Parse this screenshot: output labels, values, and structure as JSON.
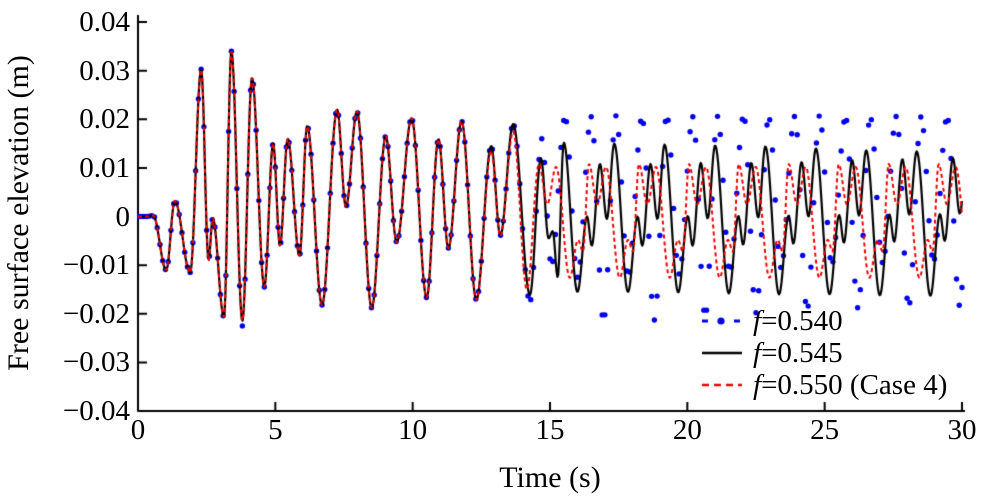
{
  "figure": {
    "xlabel": "Time (s)",
    "ylabel": "Free surface elevation (m)"
  },
  "chart_data": {
    "type": "line",
    "title": "",
    "xlabel": "Time (s)",
    "ylabel": "Free surface elevation (m)",
    "xlim": [
      0,
      30
    ],
    "ylim": [
      -0.04,
      0.04
    ],
    "grid": false,
    "legend_position": "lower right",
    "x_ticks": [
      0,
      5,
      10,
      15,
      20,
      25,
      30
    ],
    "x_tick_labels": [
      "0",
      "5",
      "10",
      "15",
      "20",
      "25",
      "30"
    ],
    "y_ticks": [
      0.04,
      0.03,
      0.02,
      0.01,
      0,
      -0.01,
      -0.02,
      -0.03,
      -0.04
    ],
    "y_tick_labels": [
      "0.04",
      "0.03",
      "0.02",
      "0.01",
      "0",
      "−0.01",
      "−0.02",
      "−0.03",
      "−0.04"
    ],
    "series": [
      {
        "name": "f=0.540",
        "label_prefix": "f",
        "label_rest": "=0.540",
        "color": "#0000ee",
        "style": "dotted-markers",
        "marker_dt": 0.1,
        "points": [
          [
            0,
            0
          ],
          [
            0.3,
            0
          ],
          [
            0.55,
            0.0002
          ],
          [
            1.03,
            -0.011
          ],
          [
            1.34,
            0.0032
          ],
          [
            1.9,
            -0.0115
          ],
          [
            2.3,
            0.0303
          ],
          [
            2.57,
            -0.009
          ],
          [
            2.72,
            -0.0003
          ],
          [
            3.13,
            -0.0207
          ],
          [
            3.4,
            0.034
          ],
          [
            3.8,
            -0.0225
          ],
          [
            4.15,
            0.0285
          ],
          [
            4.6,
            -0.0145
          ],
          [
            4.92,
            0.015
          ],
          [
            5.17,
            -0.006
          ],
          [
            5.45,
            0.016
          ],
          [
            5.88,
            -0.008
          ],
          [
            6.16,
            0.0186
          ],
          [
            6.7,
            -0.0182
          ],
          [
            7.25,
            0.022
          ],
          [
            7.57,
            0.002
          ],
          [
            7.97,
            0.0216
          ],
          [
            8.51,
            -0.0188
          ],
          [
            9.02,
            0.0165
          ],
          [
            9.42,
            -0.0053
          ],
          [
            9.96,
            0.0202
          ],
          [
            10.51,
            -0.0167
          ],
          [
            10.94,
            0.0159
          ],
          [
            11.3,
            -0.0065
          ],
          [
            11.78,
            0.0196
          ],
          [
            12.32,
            -0.0171
          ],
          [
            12.86,
            0.0145
          ],
          [
            13.19,
            -0.0039
          ],
          [
            13.66,
            0.019
          ],
          [
            14.27,
            -0.0175
          ],
          [
            14.7,
            0.016
          ],
          [
            15.05,
            -0.01
          ],
          [
            15.55,
            0.0205
          ],
          [
            16,
            -0.0125
          ],
          [
            16.5,
            0.0205
          ],
          [
            16.95,
            -0.0215
          ],
          [
            17.4,
            0.0207
          ],
          [
            17.85,
            -0.0122
          ],
          [
            18.35,
            0.0204
          ],
          [
            18.8,
            -0.0213
          ],
          [
            19.25,
            0.0208
          ],
          [
            19.7,
            -0.0118
          ],
          [
            20.2,
            0.0205
          ],
          [
            20.65,
            -0.0205
          ],
          [
            21.1,
            0.0206
          ],
          [
            21.55,
            -0.0112
          ],
          [
            22.05,
            0.0208
          ],
          [
            22.5,
            -0.0198
          ],
          [
            22.96,
            0.0205
          ],
          [
            23.41,
            -0.0105
          ],
          [
            23.91,
            0.0206
          ],
          [
            24.36,
            -0.0192
          ],
          [
            24.81,
            0.0207
          ],
          [
            25.26,
            -0.0098
          ],
          [
            25.76,
            0.0205
          ],
          [
            26.21,
            -0.0188
          ],
          [
            26.66,
            0.0205
          ],
          [
            27.11,
            -0.0095
          ],
          [
            27.61,
            0.0206
          ],
          [
            28.06,
            -0.0185
          ],
          [
            28.51,
            0.0205
          ],
          [
            28.96,
            -0.0092
          ],
          [
            29.46,
            0.0205
          ],
          [
            29.91,
            -0.0183
          ],
          [
            30.36,
            0.0205
          ]
        ]
      },
      {
        "name": "f=0.545",
        "label_prefix": "f",
        "label_rest": "=0.545",
        "color": "#000000",
        "style": "solid",
        "points": [
          [
            0,
            0
          ],
          [
            0.3,
            0
          ],
          [
            0.55,
            0.0002
          ],
          [
            1.03,
            -0.011
          ],
          [
            1.34,
            0.0032
          ],
          [
            1.9,
            -0.0115
          ],
          [
            2.3,
            0.0303
          ],
          [
            2.57,
            -0.009
          ],
          [
            2.72,
            -0.0003
          ],
          [
            3.13,
            -0.0207
          ],
          [
            3.4,
            0.034
          ],
          [
            3.8,
            -0.0215
          ],
          [
            4.15,
            0.0285
          ],
          [
            4.6,
            -0.0145
          ],
          [
            4.92,
            0.015
          ],
          [
            5.17,
            -0.006
          ],
          [
            5.45,
            0.016
          ],
          [
            5.88,
            -0.008
          ],
          [
            6.16,
            0.0186
          ],
          [
            6.7,
            -0.0182
          ],
          [
            7.25,
            0.022
          ],
          [
            7.57,
            0.002
          ],
          [
            7.97,
            0.0216
          ],
          [
            8.51,
            -0.0188
          ],
          [
            9.02,
            0.0165
          ],
          [
            9.42,
            -0.0053
          ],
          [
            9.96,
            0.0202
          ],
          [
            10.51,
            -0.0167
          ],
          [
            10.94,
            0.0159
          ],
          [
            11.3,
            -0.0065
          ],
          [
            11.78,
            0.0196
          ],
          [
            12.32,
            -0.0171
          ],
          [
            12.86,
            0.0145
          ],
          [
            13.19,
            -0.0039
          ],
          [
            13.66,
            0.019
          ],
          [
            14.27,
            -0.0161
          ],
          [
            14.67,
            0.012
          ],
          [
            14.95,
            -0.0045
          ],
          [
            15.1,
            -0.003
          ],
          [
            15.28,
            -0.0125
          ],
          [
            15.5,
            0.0152
          ],
          [
            16,
            -0.0155
          ],
          [
            16.35,
            0
          ],
          [
            16.52,
            -0.006
          ],
          [
            16.82,
            0.0108
          ],
          [
            17.07,
            -0.0005
          ],
          [
            17.34,
            0.015
          ],
          [
            17.84,
            -0.0155
          ],
          [
            18.19,
            0
          ],
          [
            18.36,
            -0.006
          ],
          [
            18.66,
            0.0108
          ],
          [
            18.91,
            -0.0005
          ],
          [
            19.17,
            0.0148
          ],
          [
            19.67,
            -0.0156
          ],
          [
            20.02,
            0.0001
          ],
          [
            20.19,
            -0.006
          ],
          [
            20.49,
            0.011
          ],
          [
            20.74,
            -0.0004
          ],
          [
            21.01,
            0.0146
          ],
          [
            21.51,
            -0.0158
          ],
          [
            21.86,
            0.0001
          ],
          [
            22.03,
            -0.0058
          ],
          [
            22.33,
            0.011
          ],
          [
            22.58,
            -0.0002
          ],
          [
            22.84,
            0.0144
          ],
          [
            23.34,
            -0.016
          ],
          [
            23.69,
            0.0002
          ],
          [
            23.86,
            -0.0056
          ],
          [
            24.16,
            0.0112
          ],
          [
            24.41,
            0
          ],
          [
            24.68,
            0.014
          ],
          [
            25.18,
            -0.016
          ],
          [
            25.53,
            0.0003
          ],
          [
            25.7,
            -0.0054
          ],
          [
            26,
            0.0116
          ],
          [
            26.25,
            0.0002
          ],
          [
            26.51,
            0.0136
          ],
          [
            27.01,
            -0.0162
          ],
          [
            27.36,
            0.0004
          ],
          [
            27.53,
            -0.0052
          ],
          [
            27.83,
            0.0118
          ],
          [
            28.08,
            0.0004
          ],
          [
            28.35,
            0.0134
          ],
          [
            28.85,
            -0.0163
          ],
          [
            29.2,
            0.0005
          ],
          [
            29.37,
            -0.005
          ],
          [
            29.67,
            0.012
          ],
          [
            29.92,
            0.0006
          ],
          [
            30.19,
            0.0134
          ]
        ]
      },
      {
        "name": "f=0.550 (Case 4)",
        "label_prefix": "f",
        "label_rest": "=0.550 (Case 4)",
        "color": "#ee0000",
        "style": "dashed",
        "points": [
          [
            0,
            0
          ],
          [
            0.3,
            0
          ],
          [
            0.55,
            0.0002
          ],
          [
            1.03,
            -0.011
          ],
          [
            1.34,
            0.0032
          ],
          [
            1.9,
            -0.0115
          ],
          [
            2.3,
            0.0303
          ],
          [
            2.57,
            -0.009
          ],
          [
            2.72,
            -0.0003
          ],
          [
            3.13,
            -0.0207
          ],
          [
            3.4,
            0.034
          ],
          [
            3.8,
            -0.0215
          ],
          [
            4.15,
            0.0285
          ],
          [
            4.6,
            -0.0145
          ],
          [
            4.92,
            0.015
          ],
          [
            5.17,
            -0.006
          ],
          [
            5.45,
            0.016
          ],
          [
            5.88,
            -0.008
          ],
          [
            6.16,
            0.0186
          ],
          [
            6.7,
            -0.0182
          ],
          [
            7.25,
            0.022
          ],
          [
            7.57,
            0.002
          ],
          [
            7.97,
            0.0216
          ],
          [
            8.51,
            -0.0188
          ],
          [
            9.02,
            0.0165
          ],
          [
            9.42,
            -0.0053
          ],
          [
            9.96,
            0.0202
          ],
          [
            10.51,
            -0.0167
          ],
          [
            10.94,
            0.0159
          ],
          [
            11.3,
            -0.0065
          ],
          [
            11.78,
            0.0196
          ],
          [
            12.32,
            -0.0171
          ],
          [
            12.86,
            0.0135
          ],
          [
            13.19,
            -0.004
          ],
          [
            13.66,
            0.0175
          ],
          [
            14.16,
            -0.015
          ],
          [
            14.6,
            0.0108
          ],
          [
            14.9,
            0.0025
          ],
          [
            15.22,
            0.0102
          ],
          [
            15.72,
            -0.0126
          ],
          [
            16.02,
            -0.0048
          ],
          [
            16.2,
            -0.0072
          ],
          [
            16.42,
            0.0108
          ],
          [
            16.72,
            0.0025
          ],
          [
            17.04,
            0.0102
          ],
          [
            17.54,
            -0.0126
          ],
          [
            17.84,
            -0.0048
          ],
          [
            18.02,
            -0.0072
          ],
          [
            18.24,
            0.0108
          ],
          [
            18.54,
            0.0025
          ],
          [
            18.86,
            0.0102
          ],
          [
            19.36,
            -0.0126
          ],
          [
            19.66,
            -0.0048
          ],
          [
            19.84,
            -0.0072
          ],
          [
            20.06,
            0.0108
          ],
          [
            20.36,
            0.0025
          ],
          [
            20.68,
            0.0102
          ],
          [
            21.18,
            -0.0126
          ],
          [
            21.48,
            -0.0048
          ],
          [
            21.66,
            -0.0072
          ],
          [
            21.87,
            0.0108
          ],
          [
            22.17,
            0.0025
          ],
          [
            22.49,
            0.0102
          ],
          [
            22.99,
            -0.0126
          ],
          [
            23.29,
            -0.0048
          ],
          [
            23.47,
            -0.0072
          ],
          [
            23.69,
            0.0108
          ],
          [
            23.99,
            0.0025
          ],
          [
            24.31,
            0.0102
          ],
          [
            24.81,
            -0.0126
          ],
          [
            25.11,
            -0.0048
          ],
          [
            25.29,
            -0.0072
          ],
          [
            25.51,
            0.0108
          ],
          [
            25.81,
            0.0025
          ],
          [
            26.13,
            0.0102
          ],
          [
            26.63,
            -0.0126
          ],
          [
            26.93,
            -0.0048
          ],
          [
            27.11,
            -0.0072
          ],
          [
            27.33,
            0.0108
          ],
          [
            27.63,
            0.0025
          ],
          [
            27.95,
            0.0102
          ],
          [
            28.45,
            -0.0126
          ],
          [
            28.75,
            -0.0048
          ],
          [
            28.93,
            -0.0072
          ],
          [
            29.15,
            0.0108
          ],
          [
            29.45,
            0.0025
          ],
          [
            29.77,
            0.0102
          ],
          [
            30.27,
            -0.0126
          ]
        ]
      }
    ]
  }
}
